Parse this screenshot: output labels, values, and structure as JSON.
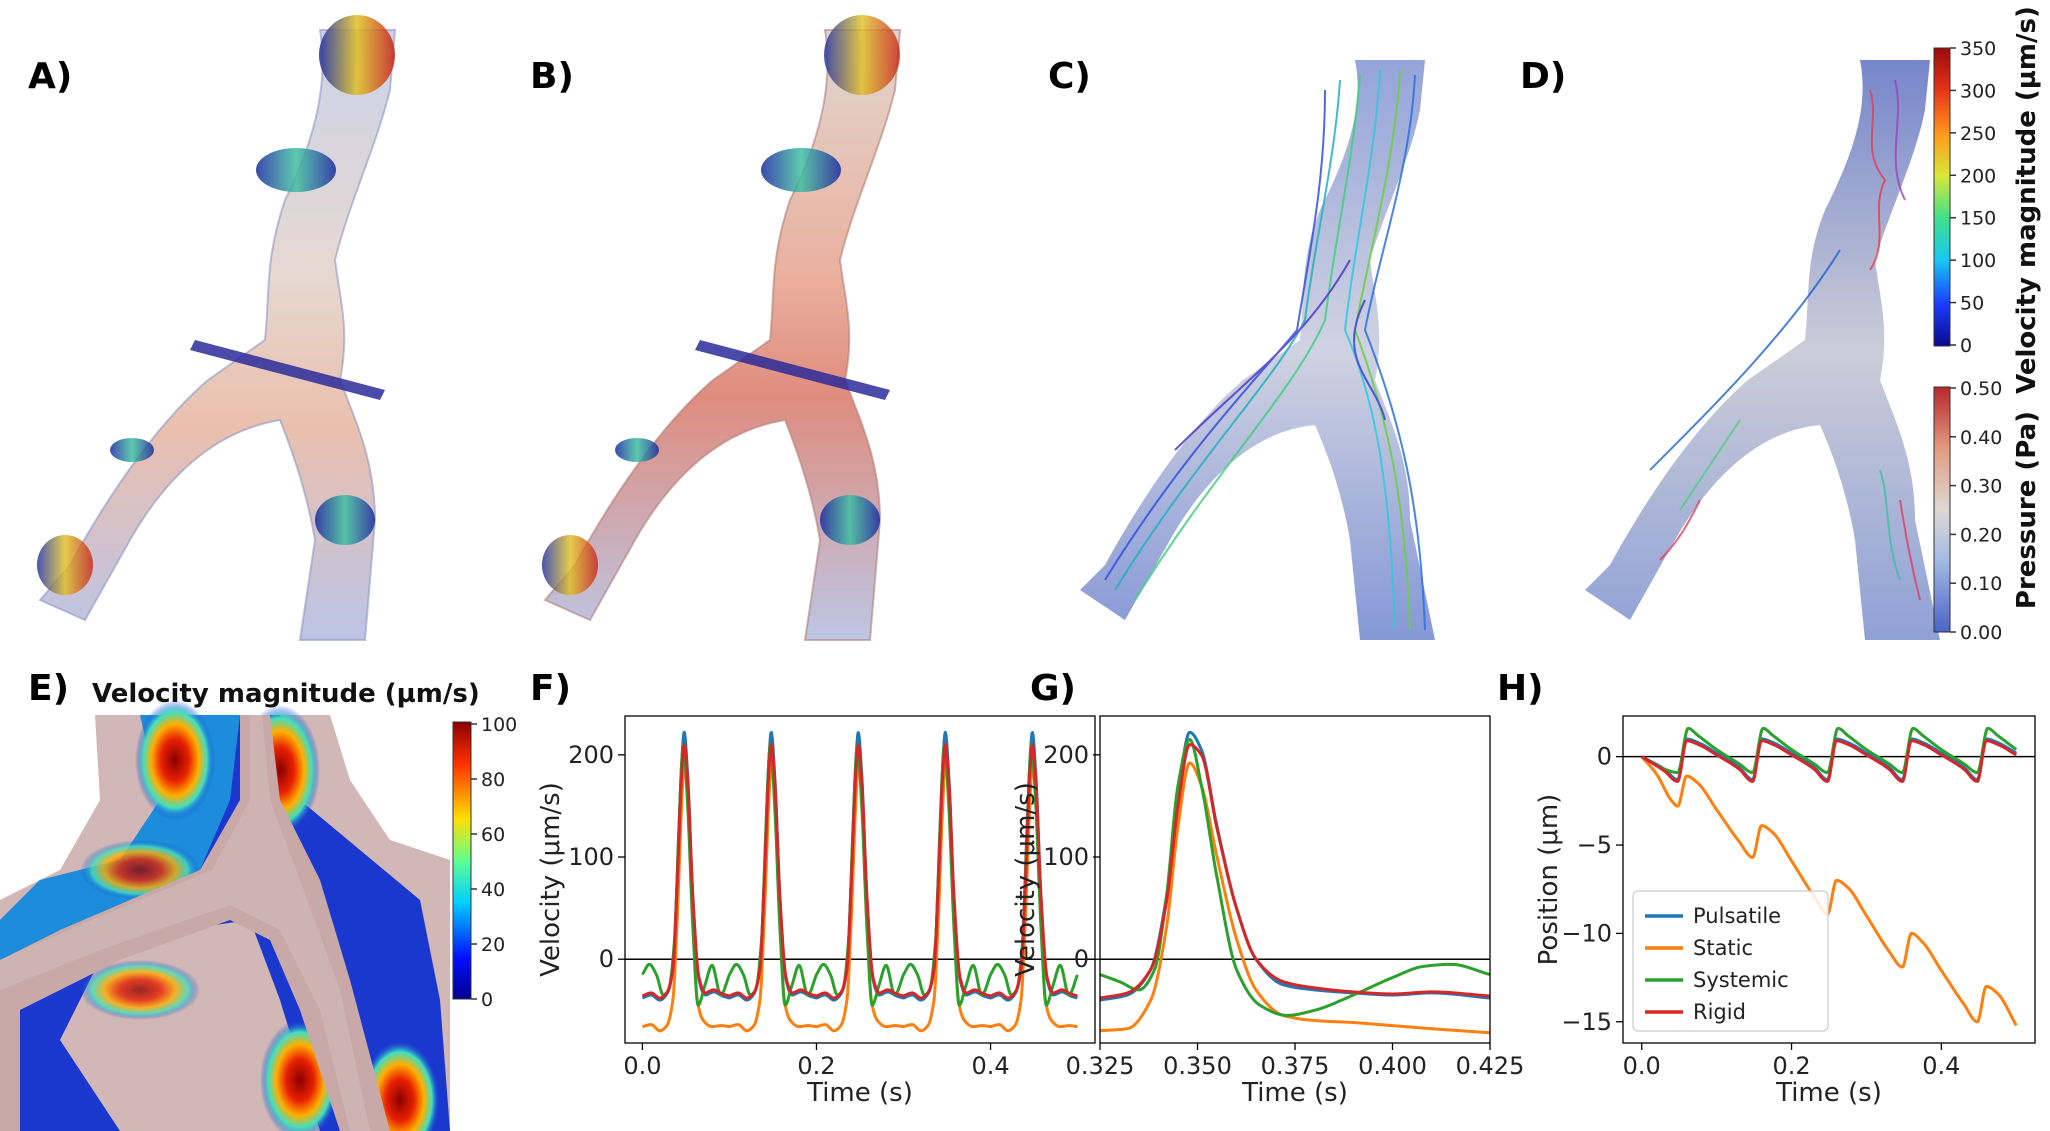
{
  "panels": {
    "A": "A)",
    "B": "B)",
    "C": "C)",
    "D": "D)",
    "E": "E)",
    "F": "F)",
    "G": "G)",
    "H": "H)"
  },
  "colorbars": {
    "velocity": {
      "title": "Velocity magnitude (µm/s)",
      "ticks": [
        "0",
        "50",
        "100",
        "150",
        "200",
        "250",
        "300",
        "350"
      ]
    },
    "pressure": {
      "title": "Pressure (Pa)",
      "ticks": [
        "0.00",
        "0.10",
        "0.20",
        "0.30",
        "0.40",
        "0.50"
      ]
    },
    "panel_e": {
      "title": "Velocity magnitude (µm/s)",
      "ticks": [
        "0",
        "20",
        "40",
        "60",
        "80",
        "100"
      ]
    }
  },
  "colors": {
    "pulsatile": "#1f77b4",
    "static": "#ff7f0e",
    "systemic": "#2ca02c",
    "rigid": "#d62728"
  },
  "chart_data": [
    {
      "panel": "F",
      "type": "line",
      "xlabel": "Time (s)",
      "ylabel": "Velocity (μm/s)",
      "xlim": [
        -0.02,
        0.52
      ],
      "ylim": [
        -82,
        238
      ],
      "xticks": [
        0.0,
        0.2,
        0.4
      ],
      "xtick_labels": [
        "0.0",
        "0.2",
        "0.4"
      ],
      "yticks": [
        0,
        100,
        200
      ],
      "ytick_labels": [
        "0",
        "100",
        "200"
      ],
      "hline": 0,
      "period": 0.1,
      "x_range": [
        0.0,
        0.5
      ],
      "series": [
        {
          "key": "pulsatile",
          "keypoints": [
            [
              0.0,
              -38
            ],
            [
              0.01,
              -35
            ],
            [
              0.02,
              -40
            ],
            [
              0.028,
              -34
            ],
            [
              0.035,
              -10
            ],
            [
              0.04,
              80
            ],
            [
              0.045,
              190
            ],
            [
              0.048,
              222
            ],
            [
              0.052,
              180
            ],
            [
              0.058,
              60
            ],
            [
              0.065,
              -20
            ],
            [
              0.072,
              -35
            ],
            [
              0.082,
              -32
            ],
            [
              0.092,
              -36
            ],
            [
              0.1,
              -38
            ]
          ]
        },
        {
          "key": "static",
          "keypoints": [
            [
              0.0,
              -66
            ],
            [
              0.01,
              -64
            ],
            [
              0.02,
              -70
            ],
            [
              0.028,
              -65
            ],
            [
              0.035,
              -40
            ],
            [
              0.04,
              40
            ],
            [
              0.045,
              150
            ],
            [
              0.048,
              190
            ],
            [
              0.052,
              160
            ],
            [
              0.058,
              40
            ],
            [
              0.063,
              -40
            ],
            [
              0.07,
              -60
            ],
            [
              0.08,
              -66
            ],
            [
              0.09,
              -65
            ],
            [
              0.1,
              -66
            ]
          ]
        },
        {
          "key": "systemic",
          "keypoints": [
            [
              0.0,
              -15
            ],
            [
              0.008,
              -5
            ],
            [
              0.016,
              -15
            ],
            [
              0.024,
              -35
            ],
            [
              0.03,
              -30
            ],
            [
              0.037,
              20
            ],
            [
              0.042,
              130
            ],
            [
              0.047,
              210
            ],
            [
              0.052,
              150
            ],
            [
              0.058,
              30
            ],
            [
              0.064,
              -45
            ],
            [
              0.072,
              -25
            ],
            [
              0.08,
              -6
            ],
            [
              0.09,
              -35
            ],
            [
              0.1,
              -15
            ]
          ]
        },
        {
          "key": "rigid",
          "keypoints": [
            [
              0.0,
              -36
            ],
            [
              0.01,
              -33
            ],
            [
              0.02,
              -38
            ],
            [
              0.028,
              -33
            ],
            [
              0.035,
              -10
            ],
            [
              0.04,
              75
            ],
            [
              0.045,
              180
            ],
            [
              0.048,
              210
            ],
            [
              0.052,
              175
            ],
            [
              0.058,
              60
            ],
            [
              0.065,
              -18
            ],
            [
              0.072,
              -33
            ],
            [
              0.082,
              -30
            ],
            [
              0.092,
              -34
            ],
            [
              0.1,
              -36
            ]
          ]
        }
      ]
    },
    {
      "panel": "G",
      "type": "line",
      "xlabel": "Time (s)",
      "ylabel": "Velocity (μm/s)",
      "xlim": [
        0.325,
        0.425
      ],
      "ylim": [
        -82,
        238
      ],
      "xticks": [
        0.325,
        0.35,
        0.375,
        0.4,
        0.425
      ],
      "xtick_labels": [
        "0.325",
        "0.350",
        "0.375",
        "0.400",
        "0.425"
      ],
      "yticks": [
        0,
        100,
        200
      ],
      "ytick_labels": [
        "0",
        "100",
        "200"
      ],
      "hline": 0,
      "series": [
        {
          "key": "pulsatile",
          "keypoints": [
            [
              0.325,
              -40
            ],
            [
              0.332,
              -35
            ],
            [
              0.338,
              -10
            ],
            [
              0.342,
              60
            ],
            [
              0.345,
              160
            ],
            [
              0.348,
              222
            ],
            [
              0.351,
              205
            ],
            [
              0.355,
              130
            ],
            [
              0.36,
              50
            ],
            [
              0.365,
              0
            ],
            [
              0.372,
              -25
            ],
            [
              0.38,
              -30
            ],
            [
              0.39,
              -33
            ],
            [
              0.4,
              -35
            ],
            [
              0.41,
              -33
            ],
            [
              0.425,
              -38
            ]
          ]
        },
        {
          "key": "static",
          "keypoints": [
            [
              0.325,
              -70
            ],
            [
              0.332,
              -68
            ],
            [
              0.338,
              -40
            ],
            [
              0.342,
              30
            ],
            [
              0.345,
              130
            ],
            [
              0.348,
              192
            ],
            [
              0.351,
              170
            ],
            [
              0.355,
              100
            ],
            [
              0.36,
              20
            ],
            [
              0.365,
              -30
            ],
            [
              0.372,
              -55
            ],
            [
              0.38,
              -60
            ],
            [
              0.39,
              -62
            ],
            [
              0.4,
              -65
            ],
            [
              0.41,
              -68
            ],
            [
              0.425,
              -72
            ]
          ]
        },
        {
          "key": "systemic",
          "keypoints": [
            [
              0.325,
              -15
            ],
            [
              0.33,
              -22
            ],
            [
              0.335,
              -30
            ],
            [
              0.339,
              -10
            ],
            [
              0.342,
              60
            ],
            [
              0.345,
              170
            ],
            [
              0.348,
              215
            ],
            [
              0.351,
              170
            ],
            [
              0.355,
              80
            ],
            [
              0.36,
              -10
            ],
            [
              0.366,
              -45
            ],
            [
              0.373,
              -55
            ],
            [
              0.38,
              -50
            ],
            [
              0.39,
              -35
            ],
            [
              0.4,
              -18
            ],
            [
              0.408,
              -7
            ],
            [
              0.415,
              -5
            ],
            [
              0.425,
              -15
            ]
          ]
        },
        {
          "key": "rigid",
          "keypoints": [
            [
              0.325,
              -38
            ],
            [
              0.332,
              -33
            ],
            [
              0.338,
              -10
            ],
            [
              0.342,
              55
            ],
            [
              0.345,
              150
            ],
            [
              0.348,
              210
            ],
            [
              0.351,
              200
            ],
            [
              0.355,
              128
            ],
            [
              0.36,
              50
            ],
            [
              0.365,
              0
            ],
            [
              0.372,
              -22
            ],
            [
              0.38,
              -28
            ],
            [
              0.39,
              -32
            ],
            [
              0.4,
              -34
            ],
            [
              0.41,
              -32
            ],
            [
              0.425,
              -36
            ]
          ]
        }
      ]
    },
    {
      "panel": "H",
      "type": "line",
      "xlabel": "Time (s)",
      "ylabel": "Position (μm)",
      "xlim": [
        -0.025,
        0.525
      ],
      "ylim": [
        -16.2,
        2.3
      ],
      "xticks": [
        0.0,
        0.2,
        0.4
      ],
      "xtick_labels": [
        "0.0",
        "0.2",
        "0.4"
      ],
      "yticks": [
        0,
        -5,
        -10,
        -15
      ],
      "ytick_labels": [
        "0",
        "−5",
        "−10",
        "−15"
      ],
      "hline": 0,
      "legend": {
        "placement": "lower-left",
        "entries": [
          "Pulsatile",
          "Static",
          "Systemic",
          "Rigid"
        ]
      },
      "series": [
        {
          "key": "pulsatile",
          "label": "Pulsatile",
          "keypoints": [
            [
              0.0,
              0.0
            ],
            [
              0.03,
              -0.7
            ],
            [
              0.048,
              -1.3
            ],
            [
              0.06,
              1.0
            ],
            [
              0.075,
              0.8
            ],
            [
              0.1,
              0.2
            ],
            [
              0.13,
              -0.6
            ],
            [
              0.148,
              -1.3
            ],
            [
              0.16,
              1.0
            ],
            [
              0.175,
              0.8
            ],
            [
              0.2,
              0.2
            ],
            [
              0.23,
              -0.6
            ],
            [
              0.248,
              -1.3
            ],
            [
              0.26,
              1.0
            ],
            [
              0.275,
              0.8
            ],
            [
              0.3,
              0.2
            ],
            [
              0.33,
              -0.6
            ],
            [
              0.348,
              -1.3
            ],
            [
              0.36,
              1.0
            ],
            [
              0.375,
              0.8
            ],
            [
              0.4,
              0.2
            ],
            [
              0.43,
              -0.6
            ],
            [
              0.448,
              -1.3
            ],
            [
              0.46,
              1.0
            ],
            [
              0.475,
              0.8
            ],
            [
              0.5,
              0.2
            ]
          ]
        },
        {
          "key": "static",
          "label": "Static",
          "keypoints": [
            [
              0.0,
              0.0
            ],
            [
              0.02,
              -1.0
            ],
            [
              0.04,
              -2.5
            ],
            [
              0.048,
              -2.8
            ],
            [
              0.06,
              -1.1
            ],
            [
              0.075,
              -1.5
            ],
            [
              0.1,
              -3.0
            ],
            [
              0.13,
              -4.8
            ],
            [
              0.148,
              -5.7
            ],
            [
              0.16,
              -3.9
            ],
            [
              0.175,
              -4.3
            ],
            [
              0.2,
              -5.9
            ],
            [
              0.23,
              -7.9
            ],
            [
              0.248,
              -8.9
            ],
            [
              0.26,
              -7.0
            ],
            [
              0.275,
              -7.4
            ],
            [
              0.3,
              -9.0
            ],
            [
              0.33,
              -11.0
            ],
            [
              0.348,
              -11.9
            ],
            [
              0.36,
              -10.0
            ],
            [
              0.375,
              -10.5
            ],
            [
              0.4,
              -12.1
            ],
            [
              0.43,
              -14.0
            ],
            [
              0.448,
              -15.0
            ],
            [
              0.46,
              -13.0
            ],
            [
              0.475,
              -13.4
            ],
            [
              0.5,
              -15.2
            ]
          ]
        },
        {
          "key": "systemic",
          "label": "Systemic",
          "keypoints": [
            [
              0.0,
              0.0
            ],
            [
              0.03,
              -0.7
            ],
            [
              0.048,
              -0.9
            ],
            [
              0.062,
              1.6
            ],
            [
              0.075,
              1.2
            ],
            [
              0.1,
              0.4
            ],
            [
              0.13,
              -0.4
            ],
            [
              0.148,
              -0.9
            ],
            [
              0.162,
              1.6
            ],
            [
              0.175,
              1.2
            ],
            [
              0.2,
              0.4
            ],
            [
              0.23,
              -0.4
            ],
            [
              0.248,
              -0.9
            ],
            [
              0.262,
              1.6
            ],
            [
              0.275,
              1.2
            ],
            [
              0.3,
              0.4
            ],
            [
              0.33,
              -0.4
            ],
            [
              0.348,
              -0.9
            ],
            [
              0.362,
              1.6
            ],
            [
              0.375,
              1.2
            ],
            [
              0.4,
              0.4
            ],
            [
              0.43,
              -0.4
            ],
            [
              0.448,
              -0.9
            ],
            [
              0.462,
              1.6
            ],
            [
              0.475,
              1.2
            ],
            [
              0.5,
              0.4
            ]
          ]
        },
        {
          "key": "rigid",
          "label": "Rigid",
          "keypoints": [
            [
              0.0,
              0.0
            ],
            [
              0.03,
              -0.8
            ],
            [
              0.048,
              -1.4
            ],
            [
              0.06,
              0.9
            ],
            [
              0.075,
              0.7
            ],
            [
              0.1,
              0.1
            ],
            [
              0.13,
              -0.7
            ],
            [
              0.148,
              -1.4
            ],
            [
              0.16,
              0.9
            ],
            [
              0.175,
              0.7
            ],
            [
              0.2,
              0.1
            ],
            [
              0.23,
              -0.7
            ],
            [
              0.248,
              -1.4
            ],
            [
              0.26,
              0.9
            ],
            [
              0.275,
              0.7
            ],
            [
              0.3,
              0.1
            ],
            [
              0.33,
              -0.7
            ],
            [
              0.348,
              -1.4
            ],
            [
              0.36,
              0.9
            ],
            [
              0.375,
              0.7
            ],
            [
              0.4,
              0.1
            ],
            [
              0.43,
              -0.7
            ],
            [
              0.448,
              -1.4
            ],
            [
              0.46,
              0.9
            ],
            [
              0.475,
              0.7
            ],
            [
              0.5,
              0.1
            ]
          ]
        }
      ]
    }
  ]
}
